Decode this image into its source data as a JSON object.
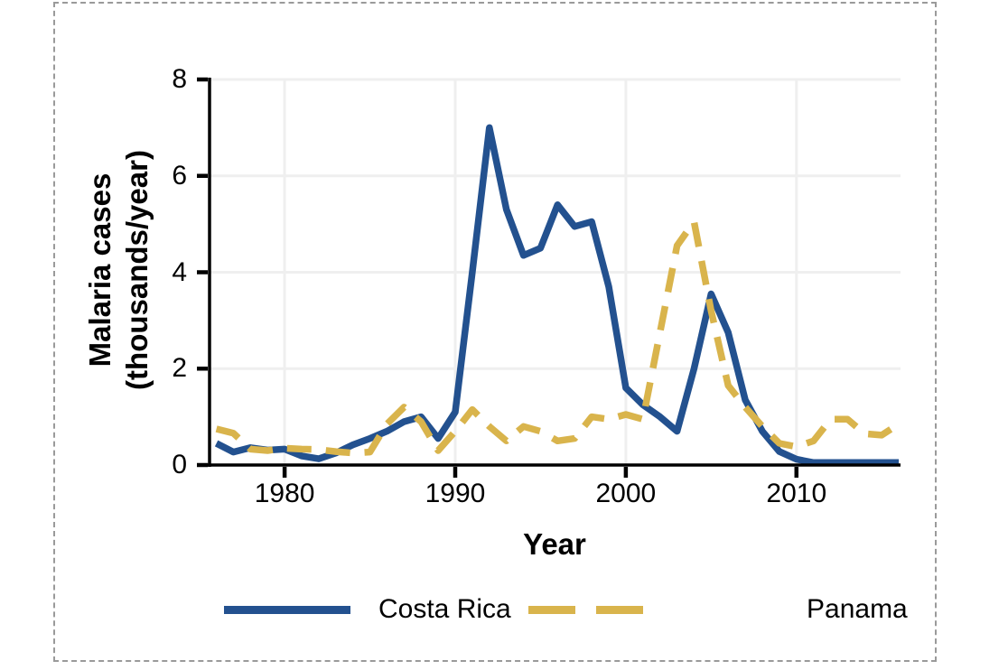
{
  "figure": {
    "background_color": "#FFFFFF",
    "border_color": "#9A9A9A",
    "border_style": "dashed"
  },
  "chart_data": {
    "type": "line",
    "title": "",
    "xlabel": "Year",
    "ylabel": "Malaria cases (thousands/year)",
    "ylabel_lines": [
      "Malaria cases",
      "(thousands/year)"
    ],
    "x_ticks": [
      1980,
      1990,
      2000,
      2010
    ],
    "y_ticks": [
      0,
      2,
      4,
      6,
      8
    ],
    "xlim": [
      1975.6,
      2016.1
    ],
    "ylim": [
      0,
      8
    ],
    "grid": true,
    "gridline_color": "#EFEFEF",
    "axis_color": "#000000",
    "legend_position": "bottom",
    "x": [
      1976,
      1977,
      1978,
      1979,
      1980,
      1981,
      1982,
      1983,
      1984,
      1985,
      1986,
      1987,
      1988,
      1989,
      1990,
      1991,
      1992,
      1993,
      1994,
      1995,
      1996,
      1997,
      1998,
      1999,
      2000,
      2001,
      2002,
      2003,
      2004,
      2005,
      2006,
      2007,
      2008,
      2009,
      2010,
      2011,
      2012,
      2013,
      2014,
      2015,
      2016
    ],
    "series": [
      {
        "name": "Costa Rica",
        "color": "#23518F",
        "style": "solid",
        "values": [
          0.45,
          0.27,
          0.36,
          0.31,
          0.33,
          0.19,
          0.13,
          0.25,
          0.42,
          0.55,
          0.7,
          0.9,
          1.0,
          0.55,
          1.1,
          4.0,
          7.0,
          5.3,
          4.35,
          4.5,
          5.4,
          4.95,
          5.05,
          3.7,
          1.6,
          1.25,
          1.0,
          0.7,
          2.0,
          3.55,
          2.75,
          1.35,
          0.7,
          0.28,
          0.12,
          0.05,
          0.05,
          0.05,
          0.05,
          0.05,
          0.05
        ]
      },
      {
        "name": "Panama",
        "color": "#D9B44C",
        "style": "dashed",
        "values": [
          0.75,
          0.66,
          0.33,
          0.3,
          0.35,
          0.33,
          0.32,
          0.28,
          0.25,
          0.27,
          0.85,
          1.2,
          0.9,
          0.3,
          0.7,
          1.15,
          0.8,
          0.5,
          0.8,
          0.7,
          0.5,
          0.55,
          1.0,
          0.95,
          1.05,
          0.95,
          2.75,
          4.55,
          5.05,
          3.2,
          1.65,
          1.2,
          0.8,
          0.45,
          0.38,
          0.5,
          0.95,
          0.95,
          0.65,
          0.62,
          0.85
        ]
      }
    ]
  },
  "legend": {
    "items": [
      {
        "label": "Costa Rica",
        "swatch": "solid-line",
        "color": "#23518F"
      },
      {
        "label": "Panama",
        "swatch": "dashed-line",
        "color": "#D9B44C"
      }
    ]
  }
}
